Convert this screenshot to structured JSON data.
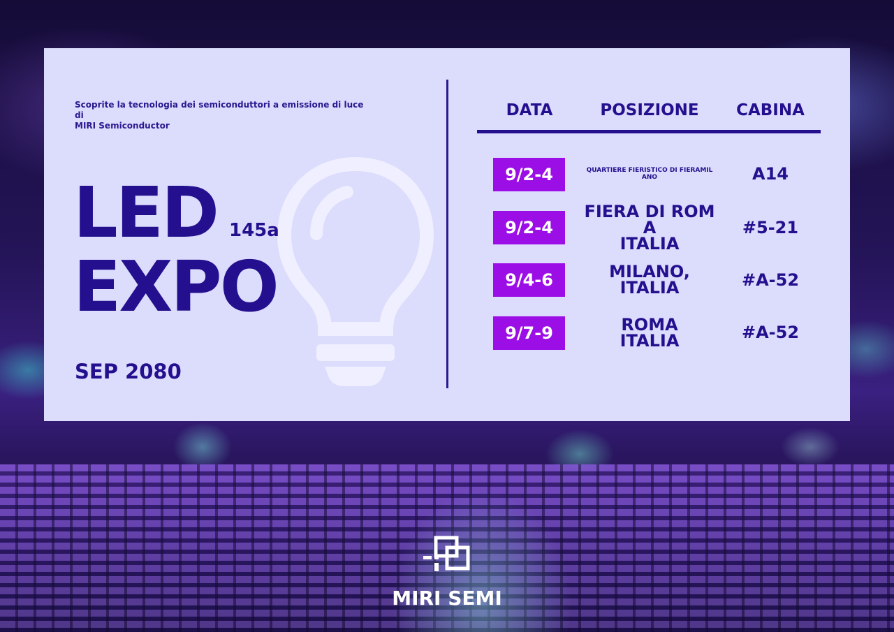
{
  "intro": {
    "tagline_line1": "Scoprite la tecnologia dei semiconduttori a emissione di luce di",
    "tagline_line2": "MIRI Semiconductor"
  },
  "event": {
    "title_line1": "LED",
    "title_line2": "EXPO",
    "edition": "145a",
    "month_year": "SEP 2080"
  },
  "schedule": {
    "headers": {
      "date": "DATA",
      "location": "POSIZIONE",
      "booth": "CABINA"
    },
    "rows": [
      {
        "date": "9/2-4",
        "location_line1": "QUARTIERE FIERISTICO DI FIERAMIL",
        "location_line2": "ANO",
        "location_line3": "",
        "booth": "A14"
      },
      {
        "date": "9/2-4",
        "location_line1": "FIERA DI ROM",
        "location_line2": "A",
        "location_line3": "ITALIA",
        "booth": "#5-21"
      },
      {
        "date": "9/4-6",
        "location_line1": "MILANO,",
        "location_line2": "ITALIA",
        "location_line3": "",
        "booth": "#A-52"
      },
      {
        "date": "9/7-9",
        "location_line1": "ROMA",
        "location_line2": "ITALIA",
        "location_line3": "",
        "booth": "#A-52"
      }
    ]
  },
  "brand": {
    "name": "MIRI SEMI",
    "logo_icon": "miri-semi-logo-icon"
  },
  "colors": {
    "card": "#dcdcfd",
    "primary": "#24108e",
    "accent": "#9b0ee6",
    "text_light": "#ffffff"
  }
}
